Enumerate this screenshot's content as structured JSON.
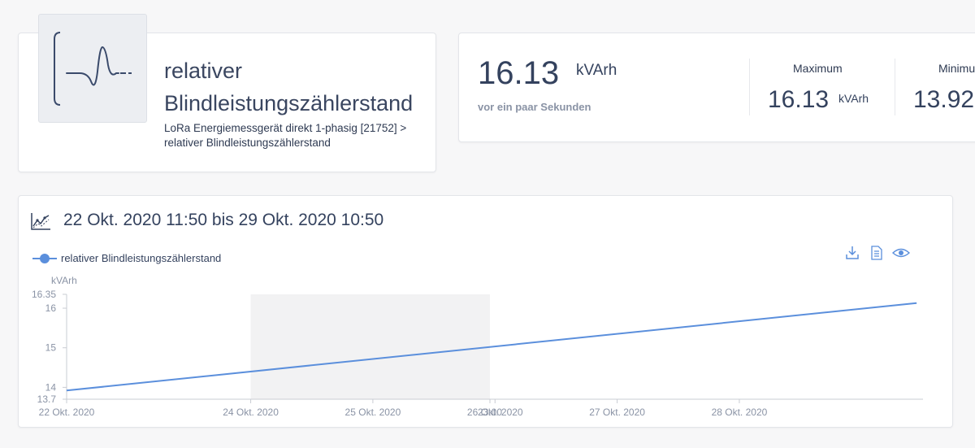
{
  "sensor": {
    "title": "relativer Blindleistungszählerstand",
    "path": "LoRa Energiemessgerät direkt 1-phasig [21752] > relativer Blindleistungszählerstand",
    "icon": "waveform-icon"
  },
  "current": {
    "value": "16.13",
    "unit": "kVArh",
    "time": "vor ein paar Sekunden"
  },
  "maximum": {
    "label": "Maximum",
    "value": "16.13",
    "unit": "kVArh"
  },
  "minimum": {
    "label": "Minimum",
    "value": "13.92"
  },
  "chart_header": {
    "range": "22 Okt. 2020 11:50 bis 29 Okt. 2020 10:50"
  },
  "colors": {
    "series": "#5b8fdc",
    "highlight": "#f2f2f3",
    "text": "#34425e"
  },
  "chart_data": {
    "type": "line",
    "legend": [
      "relativer Blindleistungszählerstand"
    ],
    "ylabel": "kVArh",
    "ylim": [
      13.7,
      16.35
    ],
    "y_ticks": [
      "13.7",
      "14",
      "15",
      "16",
      "16.35"
    ],
    "x_ticks": [
      "22 Okt. 2020",
      "24 Okt. 2020",
      "25 Okt. 2020",
      "23:00",
      "26 Okt. 2020",
      "27 Okt. 2020",
      "28 Okt. 2020"
    ],
    "series": [
      {
        "name": "relativer Blindleistungszählerstand",
        "x": [
          "22 Okt. 2020 11:50",
          "29 Okt. 2020 10:50"
        ],
        "y": [
          13.92,
          16.13
        ]
      }
    ],
    "highlight_range": [
      "24 Okt. 2020 00:00",
      "25 Okt. 2020 23:00"
    ],
    "grid": false
  }
}
